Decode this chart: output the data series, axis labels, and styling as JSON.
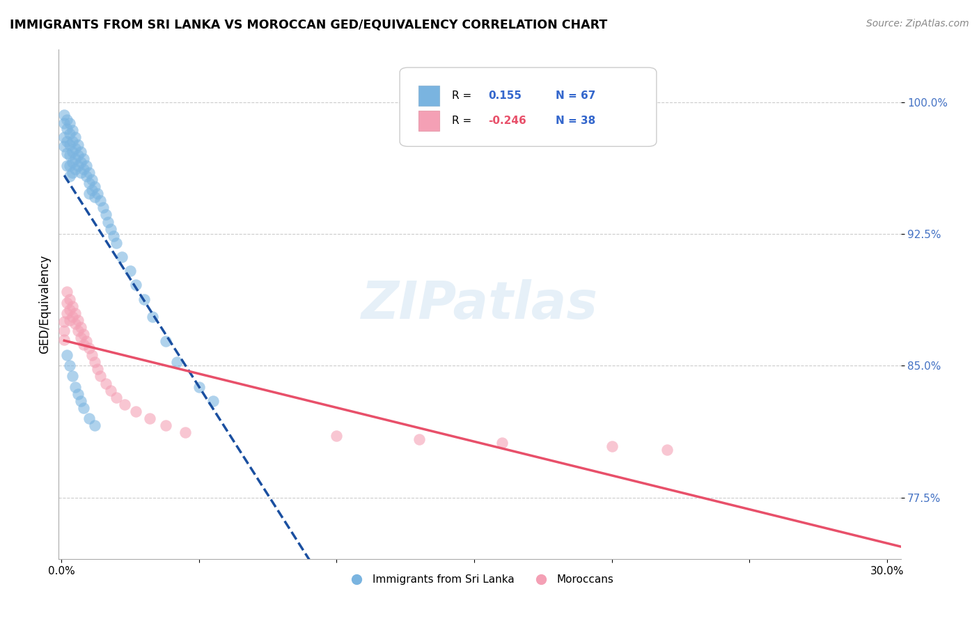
{
  "title": "IMMIGRANTS FROM SRI LANKA VS MOROCCAN GED/EQUIVALENCY CORRELATION CHART",
  "source": "Source: ZipAtlas.com",
  "ylabel": "GED/Equivalency",
  "ytick_labels": [
    "77.5%",
    "85.0%",
    "92.5%",
    "100.0%"
  ],
  "ytick_values": [
    0.775,
    0.85,
    0.925,
    1.0
  ],
  "xlim": [
    -0.001,
    0.305
  ],
  "ylim": [
    0.74,
    1.03
  ],
  "legend_sri_r": "0.155",
  "legend_sri_n": "67",
  "legend_mor_r": "-0.246",
  "legend_mor_n": "38",
  "sri_lanka_color": "#7ab4e0",
  "moroccan_color": "#f4a0b5",
  "trend_sri_lanka_color": "#1a4fa0",
  "trend_moroccan_color": "#e8506a",
  "background_color": "#ffffff",
  "watermark": "ZIPatlas",
  "sri_lanka_x": [
    0.001,
    0.001,
    0.001,
    0.001,
    0.002,
    0.002,
    0.002,
    0.002,
    0.002,
    0.003,
    0.003,
    0.003,
    0.003,
    0.003,
    0.003,
    0.004,
    0.004,
    0.004,
    0.004,
    0.004,
    0.005,
    0.005,
    0.005,
    0.005,
    0.006,
    0.006,
    0.006,
    0.007,
    0.007,
    0.007,
    0.008,
    0.008,
    0.009,
    0.009,
    0.01,
    0.01,
    0.01,
    0.011,
    0.011,
    0.012,
    0.012,
    0.013,
    0.014,
    0.015,
    0.016,
    0.017,
    0.018,
    0.019,
    0.02,
    0.022,
    0.025,
    0.027,
    0.03,
    0.033,
    0.038,
    0.042,
    0.05,
    0.055,
    0.002,
    0.003,
    0.004,
    0.005,
    0.006,
    0.007,
    0.008,
    0.01,
    0.012
  ],
  "sri_lanka_y": [
    0.993,
    0.988,
    0.98,
    0.975,
    0.99,
    0.985,
    0.978,
    0.971,
    0.964,
    0.988,
    0.982,
    0.976,
    0.97,
    0.964,
    0.958,
    0.984,
    0.978,
    0.972,
    0.966,
    0.96,
    0.98,
    0.974,
    0.968,
    0.962,
    0.976,
    0.97,
    0.964,
    0.972,
    0.966,
    0.96,
    0.968,
    0.962,
    0.964,
    0.958,
    0.96,
    0.954,
    0.948,
    0.956,
    0.95,
    0.952,
    0.946,
    0.948,
    0.944,
    0.94,
    0.936,
    0.932,
    0.928,
    0.924,
    0.92,
    0.912,
    0.904,
    0.896,
    0.888,
    0.878,
    0.864,
    0.852,
    0.838,
    0.83,
    0.856,
    0.85,
    0.844,
    0.838,
    0.834,
    0.83,
    0.826,
    0.82,
    0.816
  ],
  "moroccan_x": [
    0.001,
    0.001,
    0.001,
    0.002,
    0.002,
    0.002,
    0.003,
    0.003,
    0.003,
    0.004,
    0.004,
    0.005,
    0.005,
    0.006,
    0.006,
    0.007,
    0.007,
    0.008,
    0.008,
    0.009,
    0.01,
    0.011,
    0.012,
    0.013,
    0.014,
    0.016,
    0.018,
    0.02,
    0.023,
    0.027,
    0.032,
    0.038,
    0.045,
    0.1,
    0.13,
    0.16,
    0.2,
    0.22
  ],
  "moroccan_y": [
    0.875,
    0.87,
    0.865,
    0.892,
    0.886,
    0.88,
    0.888,
    0.882,
    0.876,
    0.884,
    0.878,
    0.88,
    0.874,
    0.876,
    0.87,
    0.872,
    0.866,
    0.868,
    0.862,
    0.864,
    0.86,
    0.856,
    0.852,
    0.848,
    0.844,
    0.84,
    0.836,
    0.832,
    0.828,
    0.824,
    0.82,
    0.816,
    0.812,
    0.81,
    0.808,
    0.806,
    0.804,
    0.802
  ]
}
